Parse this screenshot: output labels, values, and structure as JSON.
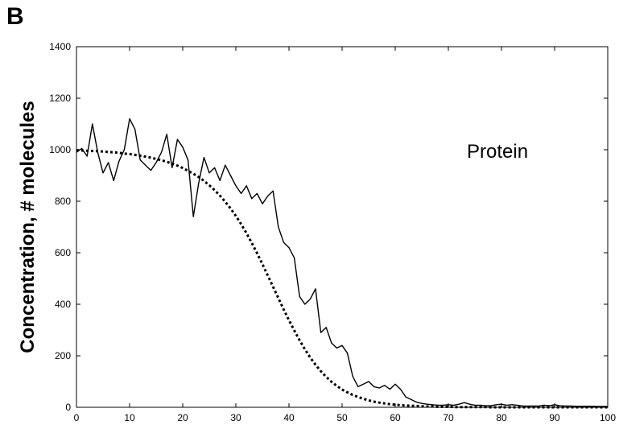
{
  "panel_label": "B",
  "chart_data": {
    "type": "line",
    "title": "",
    "xlabel": "",
    "ylabel": "Concentration, # molecules",
    "annotation": "Protein",
    "xlim": [
      0,
      100
    ],
    "ylim": [
      0,
      1400
    ],
    "x_ticks": [
      0,
      10,
      20,
      30,
      40,
      50,
      60,
      70,
      80,
      90,
      100
    ],
    "x_tick_labels": [
      "0",
      "10",
      "20",
      "30",
      "40",
      "50",
      "60",
      "70",
      "80",
      "90",
      "100"
    ],
    "y_ticks": [
      0,
      200,
      400,
      600,
      800,
      1000,
      1200,
      1400
    ],
    "y_tick_labels": [
      "0",
      "200",
      "400",
      "600",
      "800",
      "1000",
      "1200",
      "1400"
    ],
    "grid": false,
    "legend": "none",
    "x": [
      0,
      1,
      2,
      3,
      4,
      5,
      6,
      7,
      8,
      9,
      10,
      11,
      12,
      13,
      14,
      15,
      16,
      17,
      18,
      19,
      20,
      21,
      22,
      23,
      24,
      25,
      26,
      27,
      28,
      29,
      30,
      31,
      32,
      33,
      34,
      35,
      36,
      37,
      38,
      39,
      40,
      41,
      42,
      43,
      44,
      45,
      46,
      47,
      48,
      49,
      50,
      51,
      52,
      53,
      54,
      55,
      56,
      57,
      58,
      59,
      60,
      61,
      62,
      63,
      64,
      65,
      66,
      67,
      68,
      69,
      70,
      71,
      72,
      73,
      74,
      75,
      76,
      77,
      78,
      79,
      80,
      81,
      82,
      83,
      84,
      85,
      86,
      87,
      88,
      89,
      90,
      91,
      92,
      93,
      94,
      95,
      96,
      97,
      98,
      99,
      100
    ],
    "series": [
      {
        "style": "solid",
        "values": [
          990,
          1005,
          975,
          1100,
          990,
          910,
          950,
          880,
          955,
          1000,
          1120,
          1080,
          960,
          940,
          920,
          950,
          990,
          1060,
          930,
          1040,
          1010,
          960,
          740,
          870,
          970,
          910,
          930,
          880,
          940,
          900,
          860,
          830,
          860,
          810,
          830,
          790,
          820,
          840,
          700,
          640,
          620,
          580,
          430,
          400,
          420,
          460,
          290,
          310,
          250,
          230,
          240,
          210,
          120,
          80,
          90,
          100,
          80,
          75,
          85,
          70,
          90,
          70,
          40,
          30,
          20,
          15,
          12,
          10,
          8,
          8,
          10,
          8,
          12,
          18,
          12,
          8,
          8,
          6,
          6,
          10,
          12,
          8,
          10,
          8,
          5,
          5,
          5,
          5,
          8,
          6,
          10,
          6,
          5,
          5,
          4,
          4,
          4,
          4,
          3,
          3,
          3
        ]
      },
      {
        "style": "dotted",
        "values": [
          998,
          997,
          996,
          995,
          994,
          993,
          991,
          990,
          988,
          985,
          983,
          980,
          977,
          973,
          969,
          964,
          959,
          953,
          946,
          938,
          929,
          918,
          907,
          894,
          879,
          862,
          843,
          822,
          798,
          772,
          743,
          711,
          676,
          638,
          598,
          556,
          512,
          468,
          424,
          380,
          338,
          298,
          260,
          225,
          193,
          165,
          140,
          118,
          99,
          83,
          69,
          58,
          48,
          40,
          33,
          27,
          22,
          18,
          15,
          12,
          10,
          8,
          7,
          6,
          5,
          4,
          3,
          3,
          2,
          2,
          2,
          1,
          1,
          1,
          1,
          1,
          1,
          1,
          0,
          0,
          0,
          0,
          0,
          0,
          0,
          0,
          0,
          0,
          0,
          0,
          0,
          0,
          0,
          0,
          0,
          0,
          0,
          0,
          0,
          0,
          0
        ]
      }
    ]
  }
}
